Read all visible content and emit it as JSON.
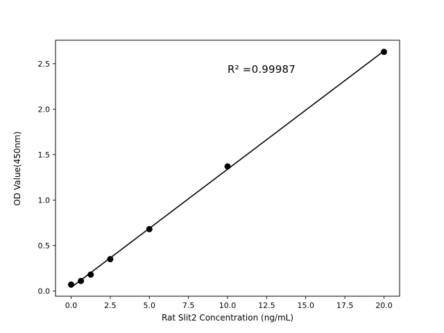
{
  "figure": {
    "background": "#ffffff"
  },
  "chart_data": {
    "type": "scatter",
    "title": "",
    "xlabel": "Rat Slit2 Concentration (ng/mL)",
    "ylabel": "OD Value(450nm)",
    "x": [
      0,
      0.625,
      1.25,
      2.5,
      5,
      10,
      20
    ],
    "y": [
      0.07,
      0.11,
      0.18,
      0.35,
      0.68,
      1.37,
      2.63
    ],
    "fit_line": true,
    "annotation": "R² =0.99987",
    "xlim": [
      -1,
      21
    ],
    "ylim": [
      -0.058,
      2.758
    ],
    "xticks": [
      0,
      2.5,
      5,
      7.5,
      10,
      12.5,
      15,
      17.5,
      20
    ],
    "xtick_labels": [
      "0.0",
      "2.5",
      "5.0",
      "7.5",
      "10.0",
      "12.5",
      "15.0",
      "17.5",
      "20.0"
    ],
    "yticks": [
      0,
      0.5,
      1,
      1.5,
      2,
      2.5
    ],
    "ytick_labels": [
      "0.0",
      "0.5",
      "1.0",
      "1.5",
      "2.0",
      "2.5"
    ],
    "marker_color": "#000000",
    "line_color": "#000000",
    "axis_color": "#000000",
    "grid": false,
    "legend": null
  }
}
